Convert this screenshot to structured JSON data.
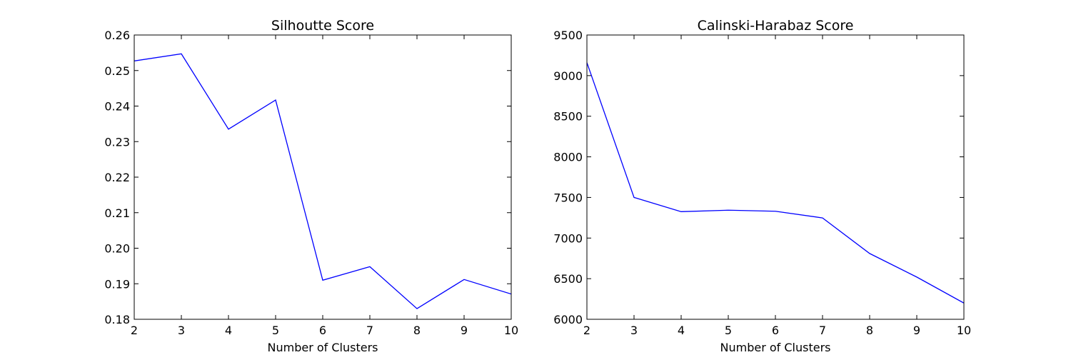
{
  "chart_data": [
    {
      "type": "line",
      "title": "Silhoutte Score",
      "xlabel": "Number of Clusters",
      "ylabel": "",
      "xlim": [
        2,
        10
      ],
      "ylim": [
        0.18,
        0.26
      ],
      "xticks": [
        2,
        3,
        4,
        5,
        6,
        7,
        8,
        9,
        10
      ],
      "yticks": [
        "0.18",
        "0.19",
        "0.20",
        "0.21",
        "0.22",
        "0.23",
        "0.24",
        "0.25",
        "0.26"
      ],
      "grid": false,
      "series": [
        {
          "color": "#0000ff",
          "x": [
            2,
            3,
            4,
            5,
            6,
            7,
            8,
            9,
            10
          ],
          "y": [
            0.2527,
            0.2547,
            0.2335,
            0.2417,
            0.191,
            0.1948,
            0.183,
            0.1912,
            0.1871
          ]
        }
      ]
    },
    {
      "type": "line",
      "title": "Calinski-Harabaz Score",
      "xlabel": "Number of Clusters",
      "ylabel": "",
      "xlim": [
        2,
        10
      ],
      "ylim": [
        6000,
        9500
      ],
      "xticks": [
        2,
        3,
        4,
        5,
        6,
        7,
        8,
        9,
        10
      ],
      "yticks": [
        "6000",
        "6500",
        "7000",
        "7500",
        "8000",
        "8500",
        "9000",
        "9500"
      ],
      "grid": false,
      "series": [
        {
          "color": "#0000ff",
          "x": [
            2,
            3,
            4,
            5,
            6,
            7,
            8,
            9,
            10
          ],
          "y": [
            9160,
            7500,
            7325,
            7343,
            7330,
            7248,
            6810,
            6520,
            6200
          ]
        }
      ]
    }
  ]
}
